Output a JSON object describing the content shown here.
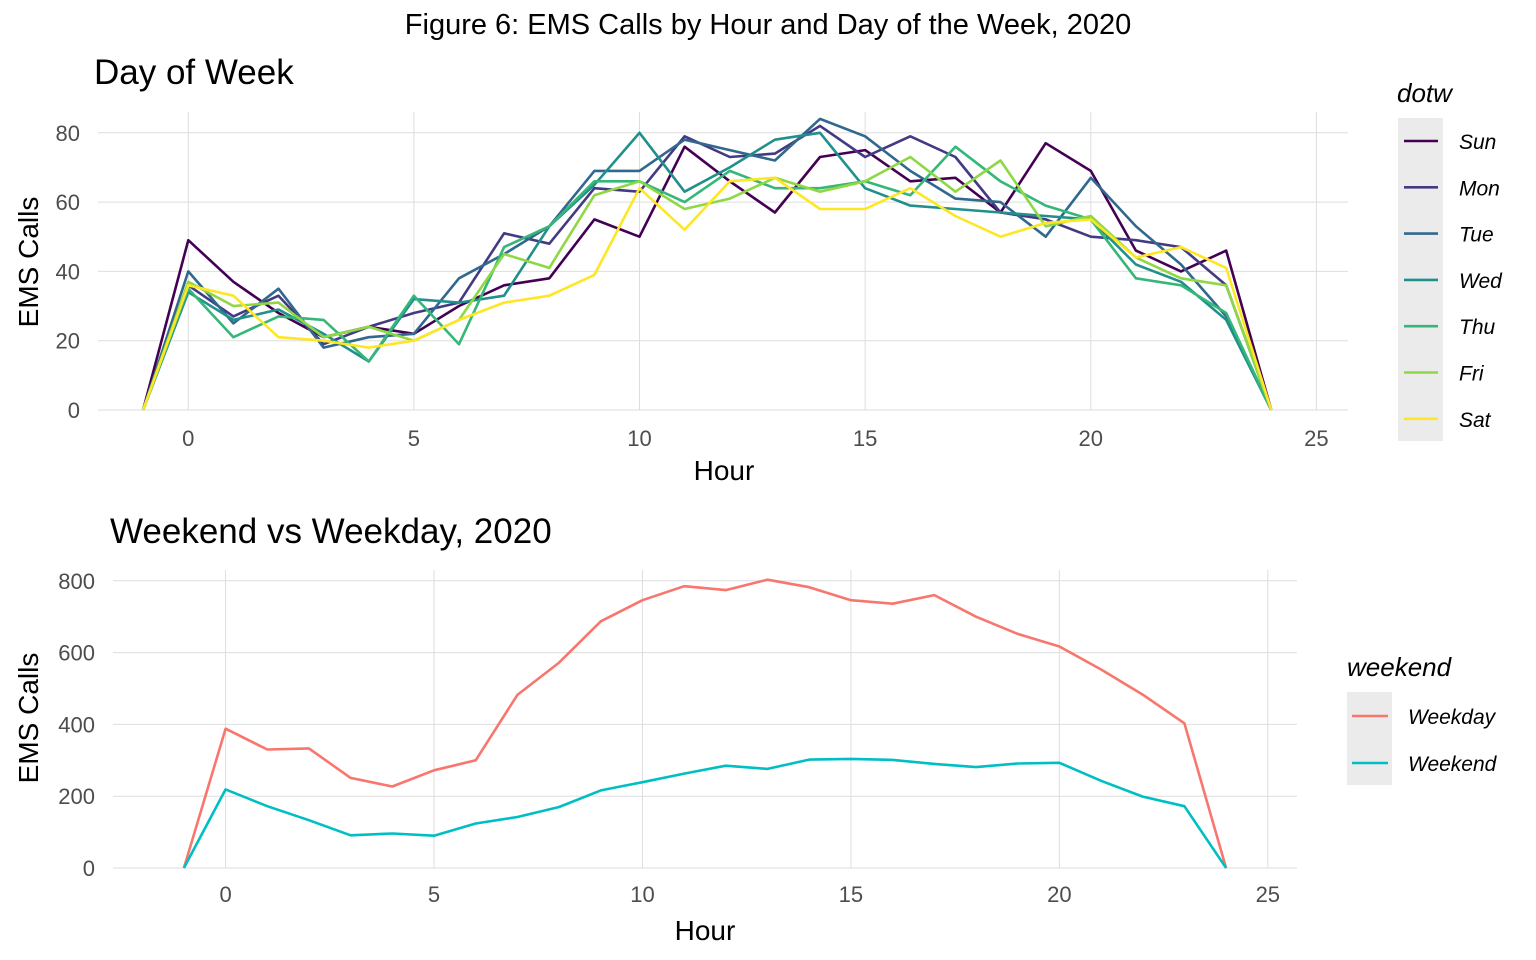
{
  "figure_title": "Figure 6: EMS Calls by Hour and Day of the Week, 2020",
  "chart_data": [
    {
      "type": "line",
      "title": "Day of Week",
      "xlabel": "Hour",
      "ylabel": "EMS Calls",
      "xlim": [
        -2,
        25.7
      ],
      "ylim": [
        0,
        86
      ],
      "xticks": [
        0,
        5,
        10,
        15,
        20,
        25
      ],
      "yticks": [
        0,
        20,
        40,
        60,
        80
      ],
      "grid": true,
      "legend_title": "dotw",
      "legend_position": "right",
      "x": [
        -1,
        0,
        1,
        2,
        3,
        4,
        5,
        6,
        7,
        8,
        9,
        10,
        11,
        12,
        13,
        14,
        15,
        16,
        17,
        18,
        19,
        20,
        21,
        22,
        23,
        24
      ],
      "series": [
        {
          "name": "Sun",
          "color": "#440154",
          "values": [
            0,
            49,
            37,
            28,
            21,
            24,
            22,
            30,
            36,
            38,
            55,
            50,
            76,
            66,
            57,
            73,
            75,
            66,
            67,
            57,
            77,
            69,
            46,
            40,
            46,
            0
          ]
        },
        {
          "name": "Mon",
          "color": "#443A83",
          "values": [
            0,
            36,
            27,
            33,
            19,
            24,
            28,
            31,
            51,
            48,
            64,
            63,
            79,
            73,
            74,
            82,
            73,
            79,
            73,
            57,
            55,
            50,
            49,
            47,
            36,
            0
          ]
        },
        {
          "name": "Tue",
          "color": "#31688E",
          "values": [
            0,
            40,
            25,
            35,
            18,
            21,
            22,
            38,
            45,
            53,
            69,
            69,
            78,
            75,
            72,
            84,
            79,
            69,
            61,
            60,
            50,
            67,
            53,
            42,
            27,
            0
          ]
        },
        {
          "name": "Wed",
          "color": "#21908C",
          "values": [
            0,
            34,
            26,
            29,
            22,
            14,
            32,
            31,
            33,
            53,
            65,
            80,
            63,
            70,
            78,
            80,
            64,
            59,
            58,
            57,
            56,
            55,
            42,
            37,
            26,
            0
          ]
        },
        {
          "name": "Thu",
          "color": "#35B779",
          "values": [
            0,
            35,
            21,
            27,
            26,
            14,
            33,
            19,
            47,
            53,
            66,
            66,
            60,
            69,
            64,
            64,
            66,
            62,
            76,
            66,
            59,
            55,
            38,
            36,
            28,
            0
          ]
        },
        {
          "name": "Fri",
          "color": "#8FD744",
          "values": [
            0,
            37,
            30,
            31,
            21,
            24,
            20,
            26,
            45,
            41,
            62,
            66,
            58,
            61,
            67,
            63,
            66,
            73,
            63,
            72,
            53,
            56,
            44,
            38,
            36,
            0
          ]
        },
        {
          "name": "Sat",
          "color": "#FDE725",
          "values": [
            0,
            36,
            33,
            21,
            20,
            18,
            20,
            26,
            31,
            33,
            39,
            64,
            52,
            66,
            67,
            58,
            58,
            64,
            56,
            50,
            54,
            55,
            44,
            47,
            41,
            0
          ]
        }
      ]
    },
    {
      "type": "line",
      "title": "Weekend vs Weekday, 2020",
      "xlabel": "Hour",
      "ylabel": "EMS Calls",
      "xlim": [
        -2.7,
        25.7
      ],
      "ylim": [
        0,
        830
      ],
      "xticks": [
        0,
        5,
        10,
        15,
        20,
        25
      ],
      "yticks": [
        0,
        200,
        400,
        600,
        800
      ],
      "grid": true,
      "legend_title": "weekend",
      "legend_position": "right",
      "x": [
        -1,
        0,
        1,
        2,
        3,
        4,
        5,
        6,
        7,
        8,
        9,
        10,
        11,
        12,
        13,
        14,
        15,
        16,
        17,
        18,
        19,
        20,
        21,
        22,
        23,
        24
      ],
      "series": [
        {
          "name": "Weekday",
          "color": "#F8766D",
          "values": [
            0,
            388,
            330,
            333,
            251,
            227,
            272,
            300,
            482,
            572,
            687,
            746,
            785,
            774,
            803,
            782,
            746,
            736,
            760,
            700,
            652,
            617,
            553,
            483,
            403,
            0
          ]
        },
        {
          "name": "Weekend",
          "color": "#00BFC4",
          "values": [
            0,
            219,
            172,
            133,
            91,
            96,
            90,
            124,
            142,
            170,
            216,
            239,
            263,
            285,
            276,
            302,
            304,
            301,
            290,
            281,
            291,
            293,
            243,
            199,
            172,
            0
          ]
        }
      ]
    }
  ]
}
